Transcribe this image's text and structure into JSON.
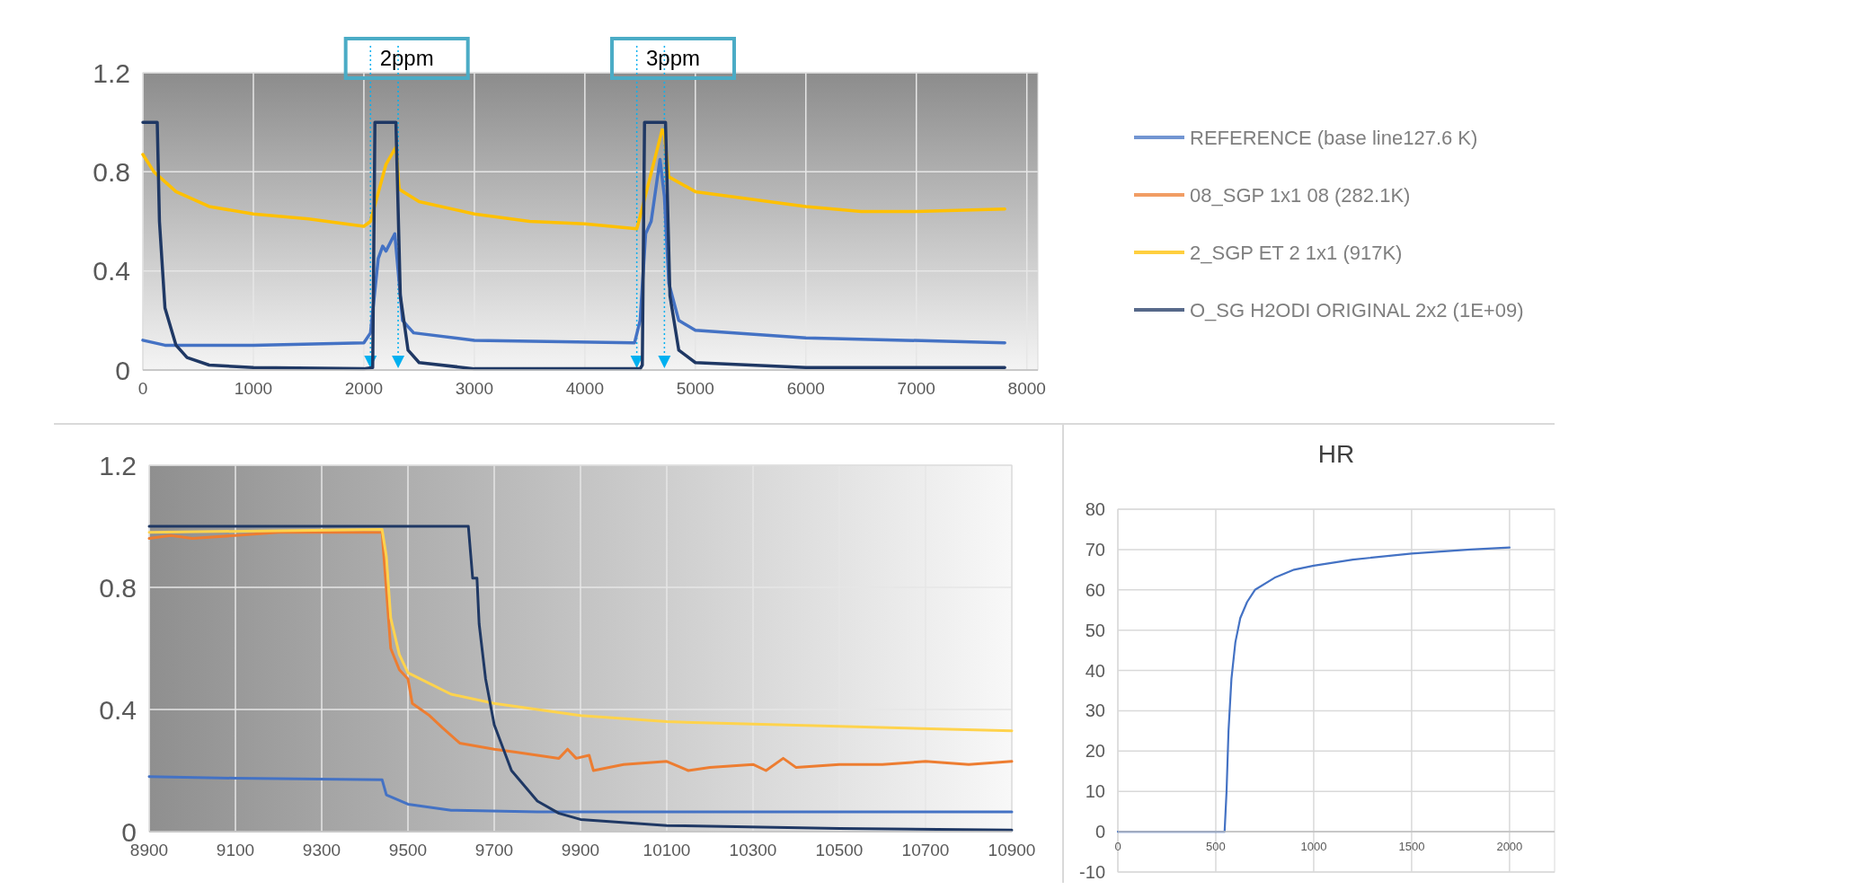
{
  "chart_data": [
    {
      "type": "line",
      "xlim": [
        0,
        8100
      ],
      "xticks": [
        0,
        1000,
        2000,
        3000,
        4000,
        5000,
        6000,
        7000,
        8000
      ],
      "ylim": [
        0,
        1.2
      ],
      "yticks": [
        0,
        0.4,
        0.8,
        1.2
      ],
      "grid": true,
      "legend": "right",
      "annotations": [
        "2ppm",
        "3ppm"
      ],
      "ref_lines": [
        {
          "axis": "x",
          "value": 2060,
          "label": null,
          "color": "#00b0f0",
          "line_style": "dotted"
        },
        {
          "axis": "x",
          "value": 2310,
          "label": null,
          "color": "#00b0f0",
          "line_style": "dotted"
        },
        {
          "axis": "x",
          "value": 4470,
          "label": null,
          "color": "#00b0f0",
          "line_style": "dotted"
        },
        {
          "axis": "x",
          "value": 4720,
          "label": null,
          "color": "#00b0f0",
          "line_style": "dotted"
        }
      ],
      "series": [
        {
          "name": "REFERENCE (base line127.6 K)",
          "color": "#4472c4",
          "x": [
            0,
            200,
            1000,
            2000,
            2060,
            2130,
            2170,
            2200,
            2280,
            2310,
            2350,
            2450,
            3000,
            4450,
            4500,
            4550,
            4600,
            4680,
            4720,
            4760,
            4850,
            5000,
            6000,
            7800
          ],
          "values": [
            0.12,
            0.1,
            0.1,
            0.11,
            0.15,
            0.45,
            0.5,
            0.48,
            0.55,
            0.4,
            0.2,
            0.15,
            0.12,
            0.11,
            0.2,
            0.55,
            0.6,
            0.85,
            0.7,
            0.35,
            0.2,
            0.16,
            0.13,
            0.11
          ]
        },
        {
          "name": "08_SGP 1x1 08 (282.1K)",
          "color": "#ed7d31"
        },
        {
          "name": "2_SGP ET 2 1x1 (917K)",
          "color": "#ffc000",
          "x": [
            0,
            100,
            300,
            600,
            1000,
            1500,
            2000,
            2060,
            2200,
            2290,
            2320,
            2500,
            3000,
            3500,
            4000,
            4470,
            4500,
            4700,
            4720,
            4760,
            5000,
            5500,
            6000,
            6500,
            7000,
            7800
          ],
          "values": [
            0.87,
            0.8,
            0.72,
            0.66,
            0.63,
            0.61,
            0.58,
            0.6,
            0.83,
            0.9,
            0.73,
            0.68,
            0.63,
            0.6,
            0.59,
            0.57,
            0.62,
            0.97,
            0.95,
            0.78,
            0.72,
            0.69,
            0.66,
            0.64,
            0.64,
            0.65
          ]
        },
        {
          "name": "O_SG H2ODI ORIGINAL 2x2  (1E+09)",
          "color": "#1f3864",
          "x": [
            0,
            130,
            150,
            200,
            300,
            400,
            600,
            1000,
            2000,
            2080,
            2100,
            2290,
            2330,
            2400,
            2500,
            3000,
            4500,
            4520,
            4540,
            4730,
            4770,
            4850,
            5000,
            6000,
            7800
          ],
          "values": [
            1,
            1,
            0.6,
            0.25,
            0.1,
            0.05,
            0.02,
            0.01,
            0.005,
            0.01,
            1,
            1,
            0.3,
            0.08,
            0.03,
            0.005,
            0.005,
            0.02,
            1,
            1,
            0.3,
            0.08,
            0.03,
            0.01,
            0.01
          ]
        }
      ]
    },
    {
      "type": "line",
      "xlim": [
        8900,
        10900
      ],
      "xticks": [
        8900,
        9100,
        9300,
        9500,
        9700,
        9900,
        10100,
        10300,
        10500,
        10700,
        10900
      ],
      "ylim": [
        0,
        1.2
      ],
      "yticks": [
        0,
        0.4,
        0.8,
        1.2
      ],
      "grid": true,
      "series": [
        {
          "color": "#4472c4",
          "x": [
            8900,
            9100,
            9440,
            9450,
            9500,
            9600,
            9800,
            10900
          ],
          "values": [
            0.18,
            0.175,
            0.17,
            0.12,
            0.09,
            0.07,
            0.065,
            0.065
          ]
        },
        {
          "color": "#ed7d31",
          "x": [
            8900,
            8950,
            9000,
            9100,
            9200,
            9300,
            9440,
            9460,
            9480,
            9500,
            9510,
            9550,
            9580,
            9620,
            9700,
            9750,
            9800,
            9850,
            9870,
            9890,
            9920,
            9930,
            10000,
            10100,
            10150,
            10200,
            10300,
            10330,
            10370,
            10400,
            10500,
            10600,
            10700,
            10800,
            10900
          ],
          "values": [
            0.96,
            0.97,
            0.96,
            0.97,
            0.98,
            0.98,
            0.98,
            0.6,
            0.53,
            0.5,
            0.42,
            0.38,
            0.34,
            0.29,
            0.27,
            0.26,
            0.25,
            0.24,
            0.27,
            0.24,
            0.25,
            0.2,
            0.22,
            0.23,
            0.2,
            0.21,
            0.22,
            0.2,
            0.24,
            0.21,
            0.22,
            0.22,
            0.23,
            0.22,
            0.23
          ]
        },
        {
          "color": "#ffd34d",
          "x": [
            8900,
            9440,
            9450,
            9460,
            9480,
            9500,
            9600,
            9700,
            9900,
            10100,
            10500,
            10900
          ],
          "values": [
            0.98,
            0.99,
            0.9,
            0.7,
            0.58,
            0.52,
            0.45,
            0.42,
            0.38,
            0.36,
            0.345,
            0.33
          ]
        },
        {
          "color": "#1f3864",
          "x": [
            8900,
            9640,
            9650,
            9660,
            9665,
            9680,
            9700,
            9740,
            9800,
            9850,
            9900,
            10100,
            10500,
            10900
          ],
          "values": [
            1,
            1,
            0.83,
            0.83,
            0.68,
            0.5,
            0.35,
            0.2,
            0.1,
            0.06,
            0.04,
            0.02,
            0.01,
            0.005
          ]
        }
      ]
    },
    {
      "type": "line",
      "title": "HR",
      "xlim": [
        0,
        2230
      ],
      "xticks": [
        0,
        500,
        1000,
        1500,
        2000
      ],
      "ylim": [
        -10,
        80
      ],
      "yticks": [
        -10,
        0,
        10,
        20,
        30,
        40,
        50,
        60,
        70,
        80
      ],
      "grid": true,
      "series": [
        {
          "color": "#4472c4",
          "x": [
            0,
            545,
            555,
            565,
            580,
            600,
            625,
            660,
            700,
            800,
            900,
            1000,
            1200,
            1500,
            1800,
            2000
          ],
          "values": [
            0,
            0,
            10,
            25,
            38,
            47,
            53,
            57,
            60,
            63,
            65,
            66,
            67.5,
            69,
            70,
            70.5
          ]
        }
      ]
    }
  ]
}
